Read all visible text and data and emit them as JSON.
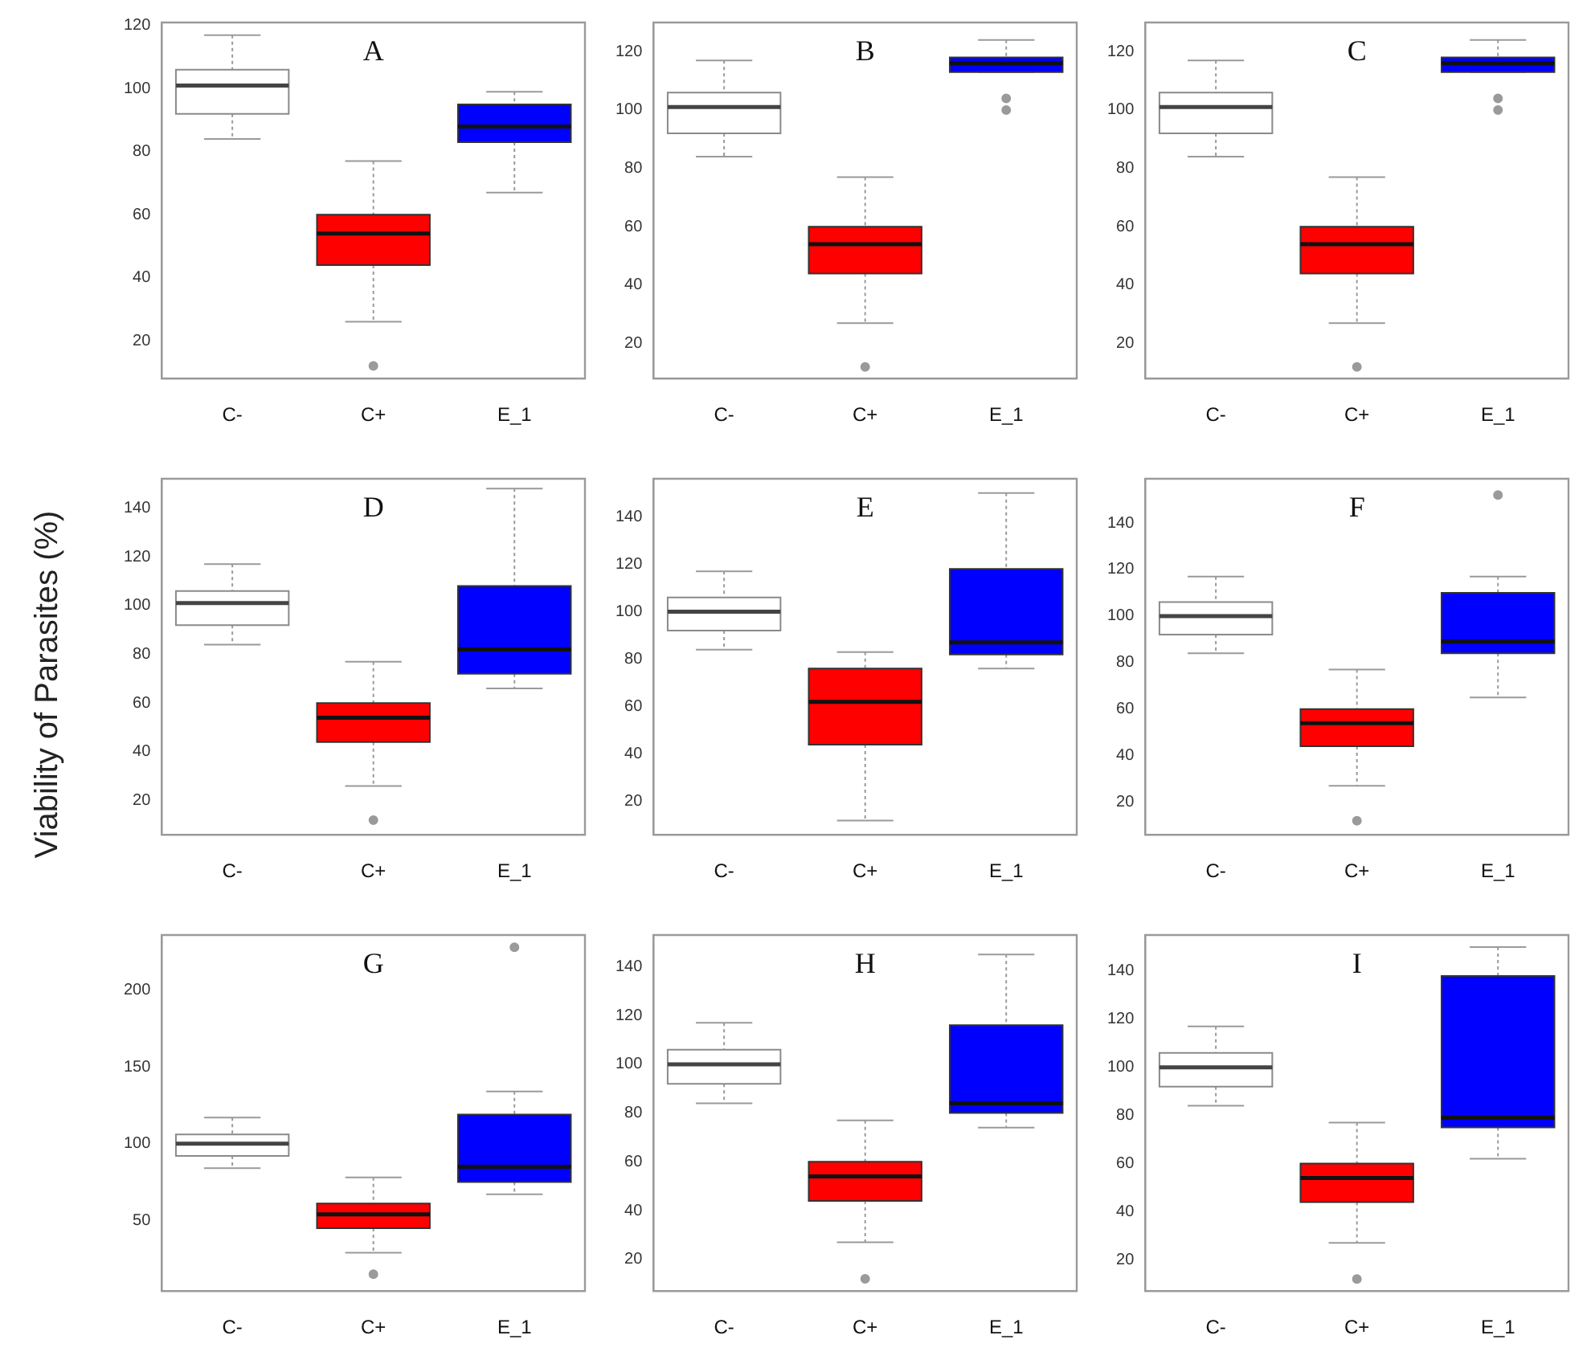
{
  "chart_data": [
    {
      "type": "box",
      "title": "A",
      "categories": [
        "C-",
        "C+",
        "E_1"
      ],
      "colors": [
        "#ffffff",
        "#ff0000",
        "#0000ff"
      ],
      "ylim": [
        8,
        121
      ],
      "yticks": [
        20,
        40,
        60,
        80,
        100,
        120
      ],
      "boxes": [
        {
          "low": 84,
          "q1": 92,
          "median": 101,
          "q3": 106,
          "high": 117
        },
        {
          "low": 26,
          "q1": 44,
          "median": 54,
          "q3": 60,
          "high": 77,
          "outliers": [
            12
          ]
        },
        {
          "low": 67,
          "q1": 83,
          "median": 88,
          "q3": 95,
          "high": 99
        }
      ]
    },
    {
      "type": "box",
      "title": "B",
      "categories": [
        "C-",
        "C+",
        "E_1"
      ],
      "colors": [
        "#ffffff",
        "#ff0000",
        "#0000ff"
      ],
      "ylim": [
        8,
        130
      ],
      "yticks": [
        20,
        40,
        60,
        80,
        100,
        120
      ],
      "boxes": [
        {
          "low": 84,
          "q1": 92,
          "median": 101,
          "q3": 106,
          "high": 117
        },
        {
          "low": 27,
          "q1": 44,
          "median": 54,
          "q3": 60,
          "high": 77,
          "outliers": [
            12
          ]
        },
        {
          "low": 113,
          "q1": 113,
          "median": 116,
          "q3": 118,
          "high": 124,
          "outliers": [
            104,
            100
          ]
        }
      ]
    },
    {
      "type": "box",
      "title": "C",
      "categories": [
        "C-",
        "C+",
        "E_1"
      ],
      "colors": [
        "#ffffff",
        "#ff0000",
        "#0000ff"
      ],
      "ylim": [
        8,
        130
      ],
      "yticks": [
        20,
        40,
        60,
        80,
        100,
        120
      ],
      "boxes": [
        {
          "low": 84,
          "q1": 92,
          "median": 101,
          "q3": 106,
          "high": 117
        },
        {
          "low": 27,
          "q1": 44,
          "median": 54,
          "q3": 60,
          "high": 77,
          "outliers": [
            12
          ]
        },
        {
          "low": 113,
          "q1": 113,
          "median": 116,
          "q3": 118,
          "high": 124,
          "outliers": [
            104,
            100
          ]
        }
      ]
    },
    {
      "type": "box",
      "title": "D",
      "ylabel": "Viability of Parasites (%)",
      "categories": [
        "C-",
        "C+",
        "E_1"
      ],
      "colors": [
        "#ffffff",
        "#ff0000",
        "#0000ff"
      ],
      "ylim": [
        6,
        152
      ],
      "yticks": [
        20,
        40,
        60,
        80,
        100,
        120,
        140
      ],
      "boxes": [
        {
          "low": 84,
          "q1": 92,
          "median": 101,
          "q3": 106,
          "high": 117
        },
        {
          "low": 26,
          "q1": 44,
          "median": 54,
          "q3": 60,
          "high": 77,
          "outliers": [
            12
          ]
        },
        {
          "low": 66,
          "q1": 72,
          "median": 82,
          "q3": 108,
          "high": 148
        }
      ]
    },
    {
      "type": "box",
      "title": "E",
      "categories": [
        "C-",
        "C+",
        "E_1"
      ],
      "colors": [
        "#ffffff",
        "#ff0000",
        "#0000ff"
      ],
      "ylim": [
        6,
        156
      ],
      "yticks": [
        20,
        40,
        60,
        80,
        100,
        120,
        140
      ],
      "boxes": [
        {
          "low": 84,
          "q1": 92,
          "median": 100,
          "q3": 106,
          "high": 117
        },
        {
          "low": 12,
          "q1": 44,
          "median": 62,
          "q3": 76,
          "high": 83
        },
        {
          "low": 76,
          "q1": 82,
          "median": 87,
          "q3": 118,
          "high": 150
        }
      ]
    },
    {
      "type": "box",
      "title": "F",
      "categories": [
        "C-",
        "C+",
        "E_1"
      ],
      "colors": [
        "#ffffff",
        "#ff0000",
        "#0000ff"
      ],
      "ylim": [
        6,
        159
      ],
      "yticks": [
        20,
        40,
        60,
        80,
        100,
        120,
        140
      ],
      "boxes": [
        {
          "low": 84,
          "q1": 92,
          "median": 100,
          "q3": 106,
          "high": 117
        },
        {
          "low": 27,
          "q1": 44,
          "median": 54,
          "q3": 60,
          "high": 77,
          "outliers": [
            12
          ]
        },
        {
          "low": 65,
          "q1": 84,
          "median": 89,
          "q3": 110,
          "high": 117,
          "outliers": [
            152
          ]
        }
      ]
    },
    {
      "type": "box",
      "title": "G",
      "categories": [
        "C-",
        "C+",
        "E_1"
      ],
      "colors": [
        "#ffffff",
        "#ff0000",
        "#0000ff"
      ],
      "ylim": [
        4,
        236
      ],
      "yticks": [
        50,
        100,
        150,
        200
      ],
      "boxes": [
        {
          "low": 84,
          "q1": 92,
          "median": 100,
          "q3": 106,
          "high": 117
        },
        {
          "low": 29,
          "q1": 45,
          "median": 54,
          "q3": 61,
          "high": 78,
          "outliers": [
            15
          ]
        },
        {
          "low": 67,
          "q1": 75,
          "median": 85,
          "q3": 119,
          "high": 134,
          "outliers": [
            228
          ]
        }
      ]
    },
    {
      "type": "box",
      "title": "H",
      "categories": [
        "C-",
        "C+",
        "E_1"
      ],
      "colors": [
        "#ffffff",
        "#ff0000",
        "#0000ff"
      ],
      "ylim": [
        7,
        153
      ],
      "yticks": [
        20,
        40,
        60,
        80,
        100,
        120,
        140
      ],
      "boxes": [
        {
          "low": 84,
          "q1": 92,
          "median": 100,
          "q3": 106,
          "high": 117
        },
        {
          "low": 27,
          "q1": 44,
          "median": 54,
          "q3": 60,
          "high": 77,
          "outliers": [
            12
          ]
        },
        {
          "low": 74,
          "q1": 80,
          "median": 84,
          "q3": 116,
          "high": 145
        }
      ]
    },
    {
      "type": "box",
      "title": "I",
      "categories": [
        "C-",
        "C+",
        "E_1"
      ],
      "colors": [
        "#ffffff",
        "#ff0000",
        "#0000ff"
      ],
      "ylim": [
        7,
        155
      ],
      "yticks": [
        20,
        40,
        60,
        80,
        100,
        120,
        140
      ],
      "boxes": [
        {
          "low": 84,
          "q1": 92,
          "median": 100,
          "q3": 106,
          "high": 117
        },
        {
          "low": 27,
          "q1": 44,
          "median": 54,
          "q3": 60,
          "high": 77,
          "outliers": [
            12
          ]
        },
        {
          "low": 62,
          "q1": 75,
          "median": 79,
          "q3": 138,
          "high": 150
        }
      ]
    }
  ]
}
